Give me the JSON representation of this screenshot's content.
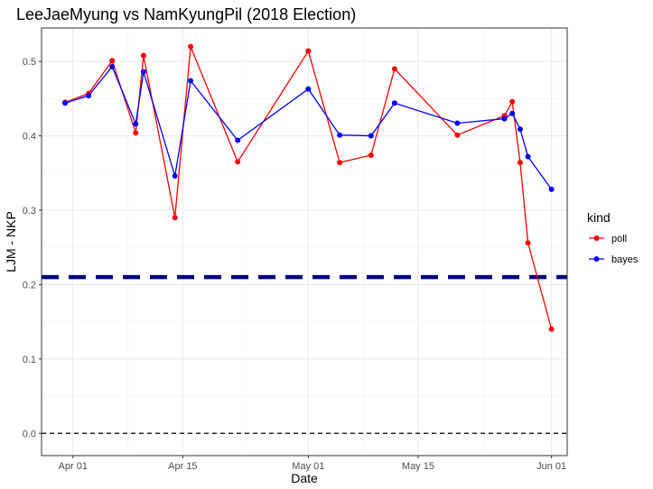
{
  "chart_data": {
    "type": "line",
    "title": "LeeJaeMyung vs NamKyungPil (2018 Election)",
    "xlabel": "Date",
    "ylabel": "LJM - NKP",
    "x_axis_type": "date",
    "xlim": [
      "2018-03-28",
      "2018-06-03"
    ],
    "ylim": [
      -0.03,
      0.545
    ],
    "x_ticks": [
      {
        "value": "2018-04-01",
        "label": "Apr 01"
      },
      {
        "value": "2018-04-15",
        "label": "Apr 15"
      },
      {
        "value": "2018-05-01",
        "label": "May 01"
      },
      {
        "value": "2018-05-15",
        "label": "May 15"
      },
      {
        "value": "2018-06-01",
        "label": "Jun 01"
      }
    ],
    "y_ticks": [
      {
        "value": 0.0,
        "label": "0.0"
      },
      {
        "value": 0.1,
        "label": "0.1"
      },
      {
        "value": 0.2,
        "label": "0.2"
      },
      {
        "value": 0.3,
        "label": "0.3"
      },
      {
        "value": 0.4,
        "label": "0.4"
      },
      {
        "value": 0.5,
        "label": "0.5"
      }
    ],
    "grid": true,
    "legend": {
      "title": "kind",
      "position": "right"
    },
    "series": [
      {
        "name": "poll",
        "color": "#ff0000",
        "points": [
          {
            "x": "2018-03-31",
            "y": 0.445
          },
          {
            "x": "2018-04-03",
            "y": 0.457
          },
          {
            "x": "2018-04-06",
            "y": 0.501
          },
          {
            "x": "2018-04-09",
            "y": 0.404
          },
          {
            "x": "2018-04-10",
            "y": 0.508
          },
          {
            "x": "2018-04-14",
            "y": 0.29
          },
          {
            "x": "2018-04-16",
            "y": 0.52
          },
          {
            "x": "2018-04-22",
            "y": 0.365
          },
          {
            "x": "2018-05-01",
            "y": 0.514
          },
          {
            "x": "2018-05-05",
            "y": 0.364
          },
          {
            "x": "2018-05-09",
            "y": 0.374
          },
          {
            "x": "2018-05-12",
            "y": 0.49
          },
          {
            "x": "2018-05-20",
            "y": 0.401
          },
          {
            "x": "2018-05-26",
            "y": 0.427
          },
          {
            "x": "2018-05-27",
            "y": 0.446
          },
          {
            "x": "2018-05-28",
            "y": 0.364
          },
          {
            "x": "2018-05-29",
            "y": 0.256
          },
          {
            "x": "2018-06-01",
            "y": 0.14
          }
        ]
      },
      {
        "name": "bayes",
        "color": "#0000ff",
        "points": [
          {
            "x": "2018-03-31",
            "y": 0.444
          },
          {
            "x": "2018-04-03",
            "y": 0.454
          },
          {
            "x": "2018-04-06",
            "y": 0.493
          },
          {
            "x": "2018-04-09",
            "y": 0.416
          },
          {
            "x": "2018-04-10",
            "y": 0.486
          },
          {
            "x": "2018-04-14",
            "y": 0.346
          },
          {
            "x": "2018-04-16",
            "y": 0.474
          },
          {
            "x": "2018-04-22",
            "y": 0.394
          },
          {
            "x": "2018-05-01",
            "y": 0.463
          },
          {
            "x": "2018-05-05",
            "y": 0.401
          },
          {
            "x": "2018-05-09",
            "y": 0.4
          },
          {
            "x": "2018-05-12",
            "y": 0.444
          },
          {
            "x": "2018-05-20",
            "y": 0.417
          },
          {
            "x": "2018-05-26",
            "y": 0.423
          },
          {
            "x": "2018-05-27",
            "y": 0.43
          },
          {
            "x": "2018-05-28",
            "y": 0.409
          },
          {
            "x": "2018-05-29",
            "y": 0.372
          },
          {
            "x": "2018-06-01",
            "y": 0.328
          }
        ]
      }
    ],
    "reference_lines": [
      {
        "y": 0.21,
        "color": "#000080",
        "style": "thick-dashed"
      },
      {
        "y": 0.0,
        "color": "#000000",
        "style": "dashed"
      }
    ]
  }
}
